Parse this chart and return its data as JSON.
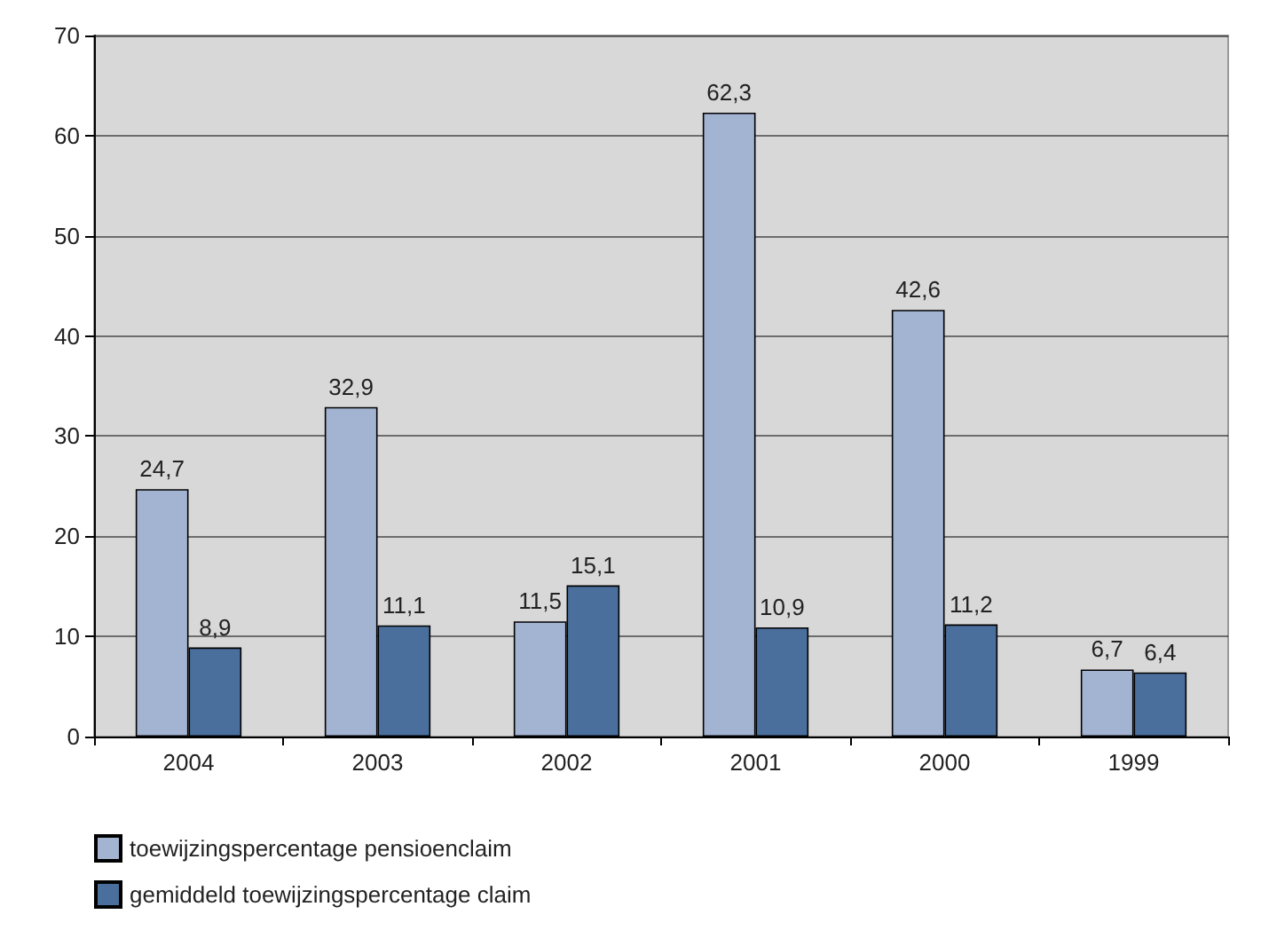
{
  "chart_data": {
    "type": "bar",
    "categories": [
      "2004",
      "2003",
      "2002",
      "2001",
      "2000",
      "1999"
    ],
    "series": [
      {
        "name": "toewijzingspercentage pensioenclaim",
        "color": "#a3b4d2",
        "values": [
          24.7,
          32.9,
          11.5,
          62.3,
          42.6,
          6.7
        ],
        "value_labels": [
          "24,7",
          "32,9",
          "11,5",
          "62,3",
          "42,6",
          "6,7"
        ]
      },
      {
        "name": "gemiddeld toewijzingspercentage claim",
        "color": "#4a6f9c",
        "values": [
          8.9,
          11.1,
          15.1,
          10.9,
          11.2,
          6.4
        ],
        "value_labels": [
          "8,9",
          "11,1",
          "15,1",
          "10,9",
          "11,2",
          "6,4"
        ]
      }
    ],
    "ylim": [
      0,
      70
    ],
    "yticks": [
      0,
      10,
      20,
      30,
      40,
      50,
      60,
      70
    ],
    "grid": "y",
    "legend": "bottom left"
  }
}
